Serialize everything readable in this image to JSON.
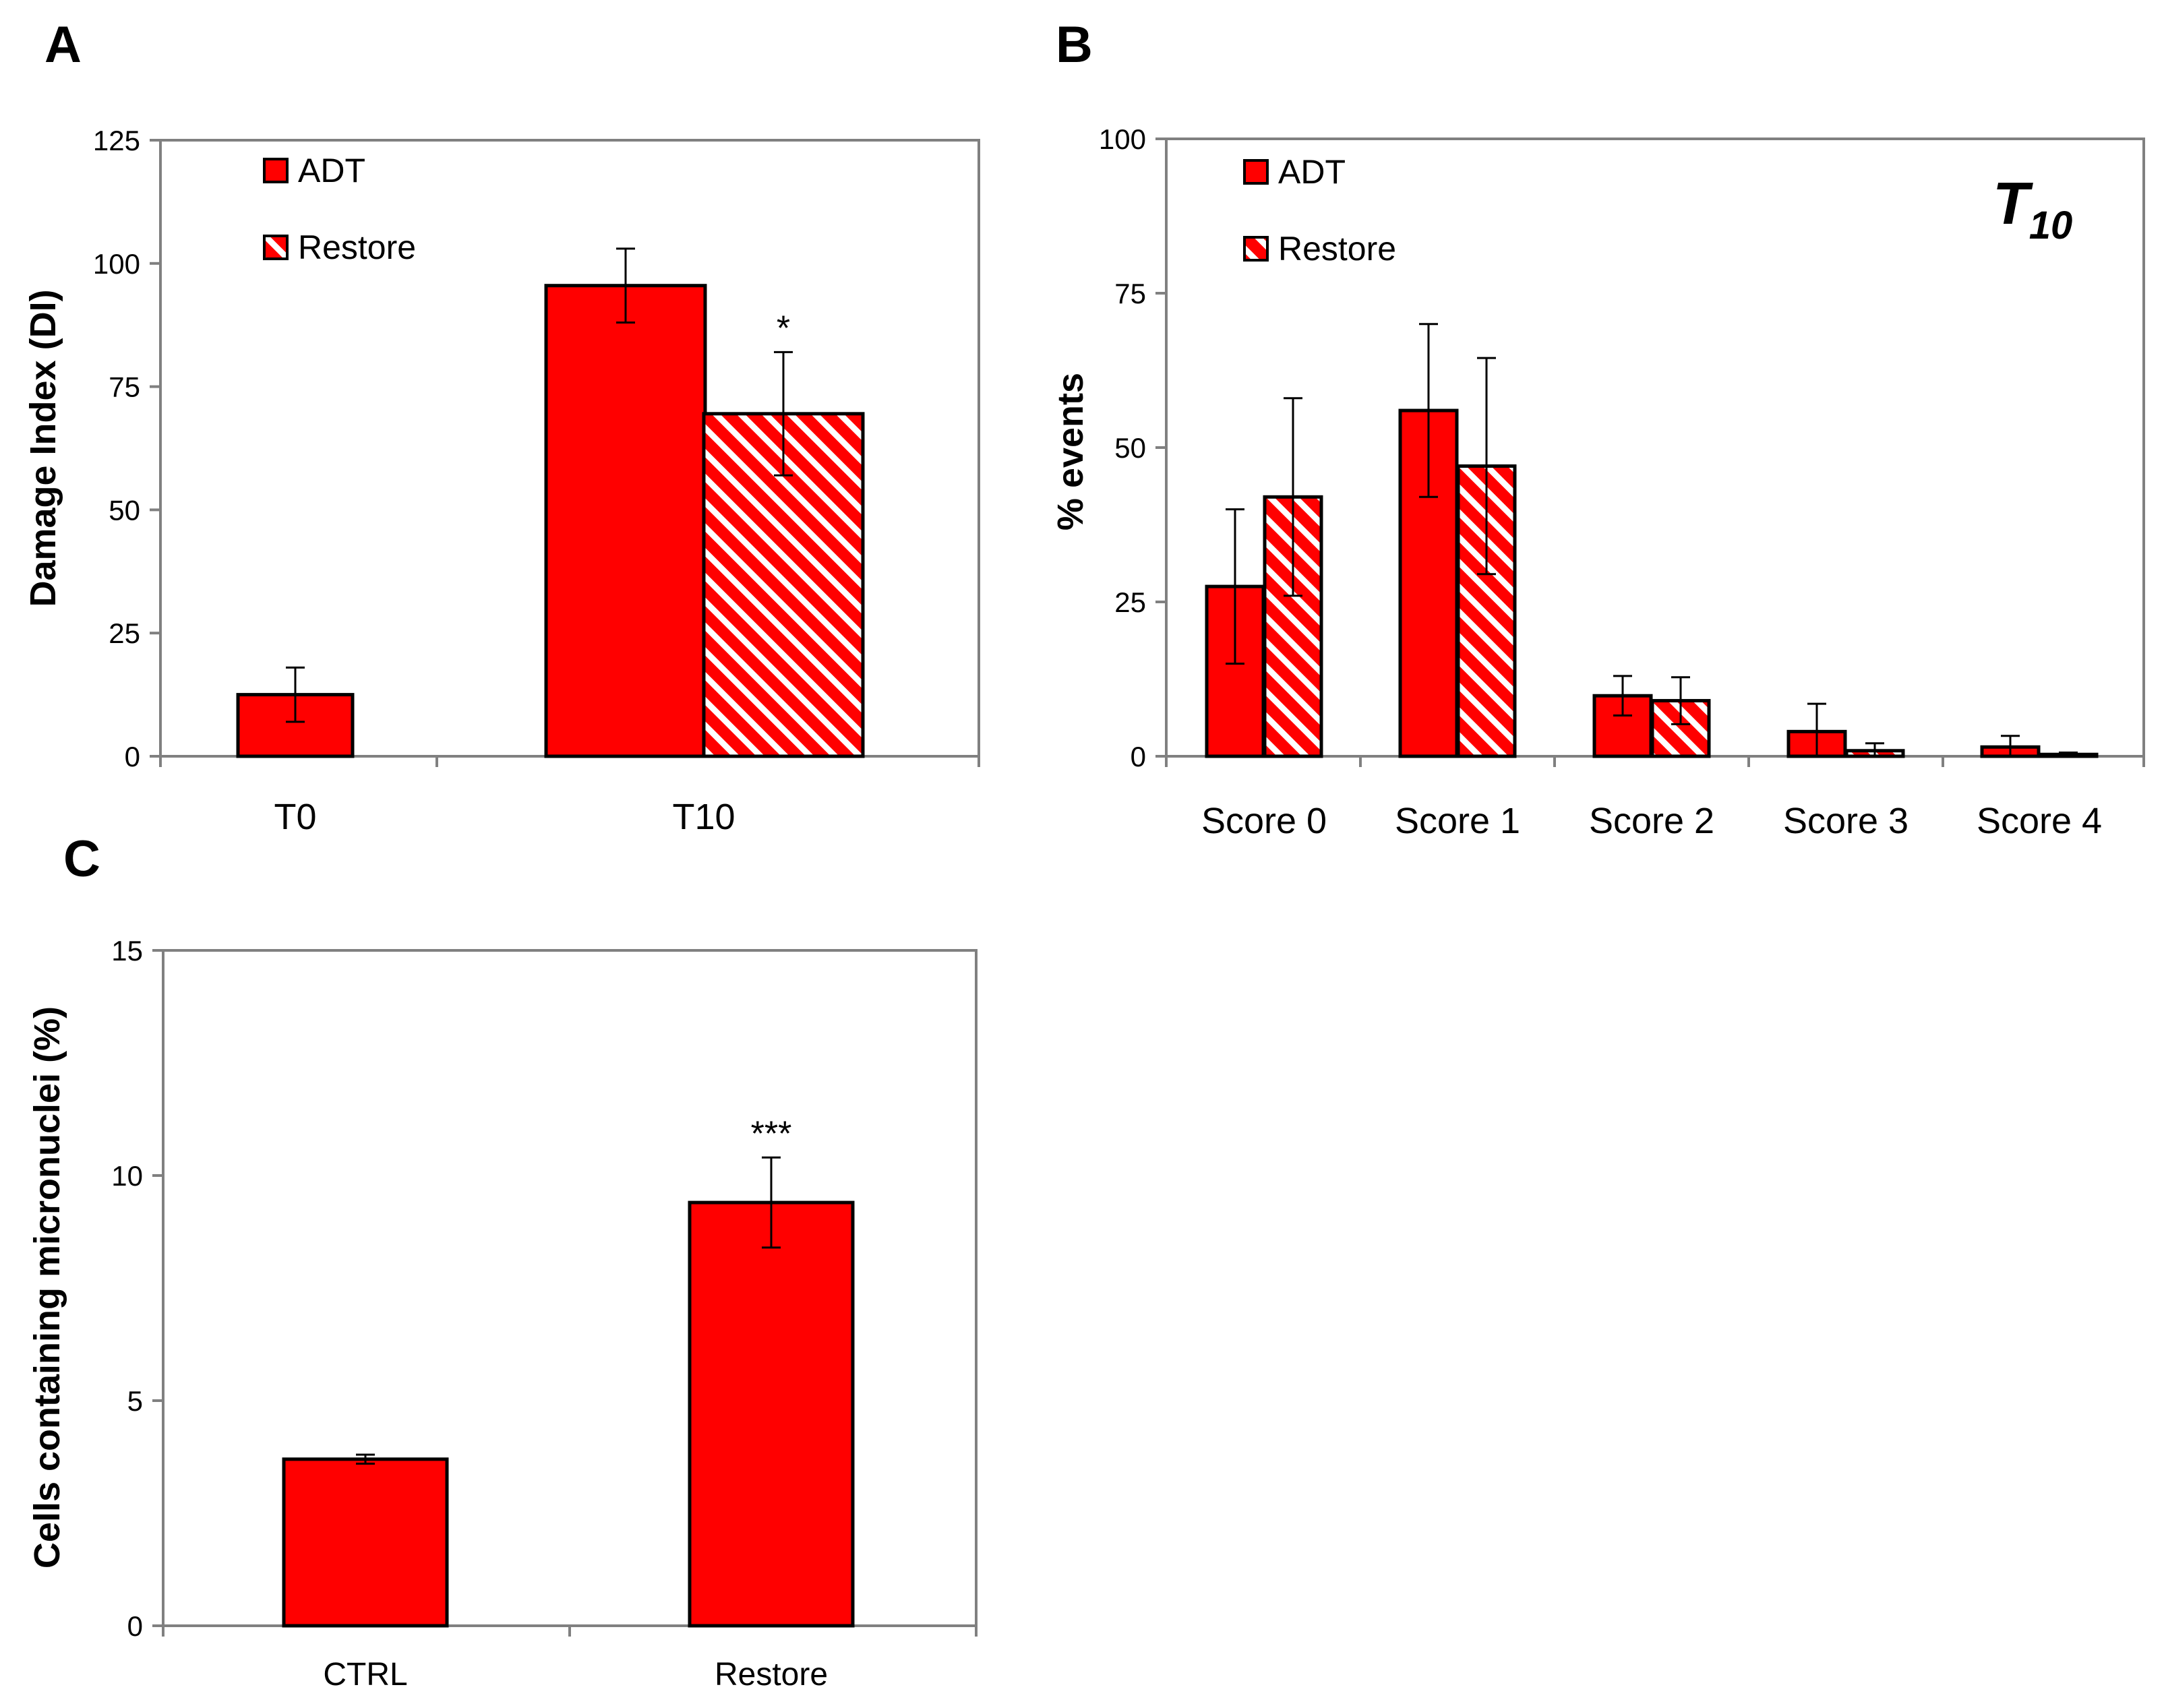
{
  "colors": {
    "bar": "#ff0000",
    "hatch": "#ffffff",
    "axis": "#808080",
    "outline": "#000000"
  },
  "chart_data": [
    {
      "panel": "A",
      "type": "bar",
      "title": "",
      "xlabel": "",
      "ylabel": "Damage Index (DI)",
      "ylim": [
        0,
        125
      ],
      "yticks": [
        "0",
        "25",
        "50",
        "75",
        "100",
        "125"
      ],
      "categories": [
        "T0",
        "T10"
      ],
      "legend": [
        "ADT",
        "Restore"
      ],
      "legend_position": "top-left",
      "series": [
        {
          "name": "ADT",
          "pattern": "solid",
          "values": [
            12.5,
            95.5
          ],
          "errors": [
            5.5,
            7.5
          ]
        },
        {
          "name": "Restore",
          "pattern": "hatched",
          "values": [
            null,
            69.5
          ],
          "errors": [
            null,
            12.5
          ]
        }
      ],
      "annotations": [
        {
          "series": "Restore",
          "category": "T10",
          "text": "*"
        }
      ]
    },
    {
      "panel": "B",
      "type": "bar",
      "title": "T10",
      "title_base": "T",
      "title_sub": "10",
      "xlabel": "",
      "ylabel": "% events",
      "ylim": [
        0,
        100
      ],
      "yticks": [
        "0",
        "25",
        "50",
        "75",
        "100"
      ],
      "categories": [
        "Score 0",
        "Score 1",
        "Score 2",
        "Score 3",
        "Score 4"
      ],
      "legend": [
        "ADT",
        "Restore"
      ],
      "legend_position": "top-left",
      "series": [
        {
          "name": "ADT",
          "pattern": "solid",
          "values": [
            27.5,
            56,
            9.8,
            4,
            1.5
          ],
          "errors": [
            12.5,
            14,
            3.2,
            4.5,
            1.8
          ]
        },
        {
          "name": "Restore",
          "pattern": "hatched",
          "values": [
            42,
            47,
            9,
            0.9,
            0.3
          ],
          "errors": [
            16,
            17.5,
            3.8,
            1.2,
            0.3
          ]
        }
      ],
      "annotations": []
    },
    {
      "panel": "C",
      "type": "bar",
      "title": "",
      "xlabel": "",
      "ylabel": "Cells containing micronuclei (%)",
      "ylim": [
        0,
        15
      ],
      "yticks": [
        "0",
        "5",
        "10",
        "15"
      ],
      "categories": [
        "CTRL",
        "Restore"
      ],
      "legend": [],
      "series": [
        {
          "name": "Cells containing micronuclei",
          "pattern": "solid",
          "values": [
            3.7,
            9.4
          ],
          "errors": [
            0.1,
            1.0
          ]
        }
      ],
      "annotations": [
        {
          "series": "Cells containing micronuclei",
          "category": "Restore",
          "text": "***"
        }
      ]
    }
  ]
}
